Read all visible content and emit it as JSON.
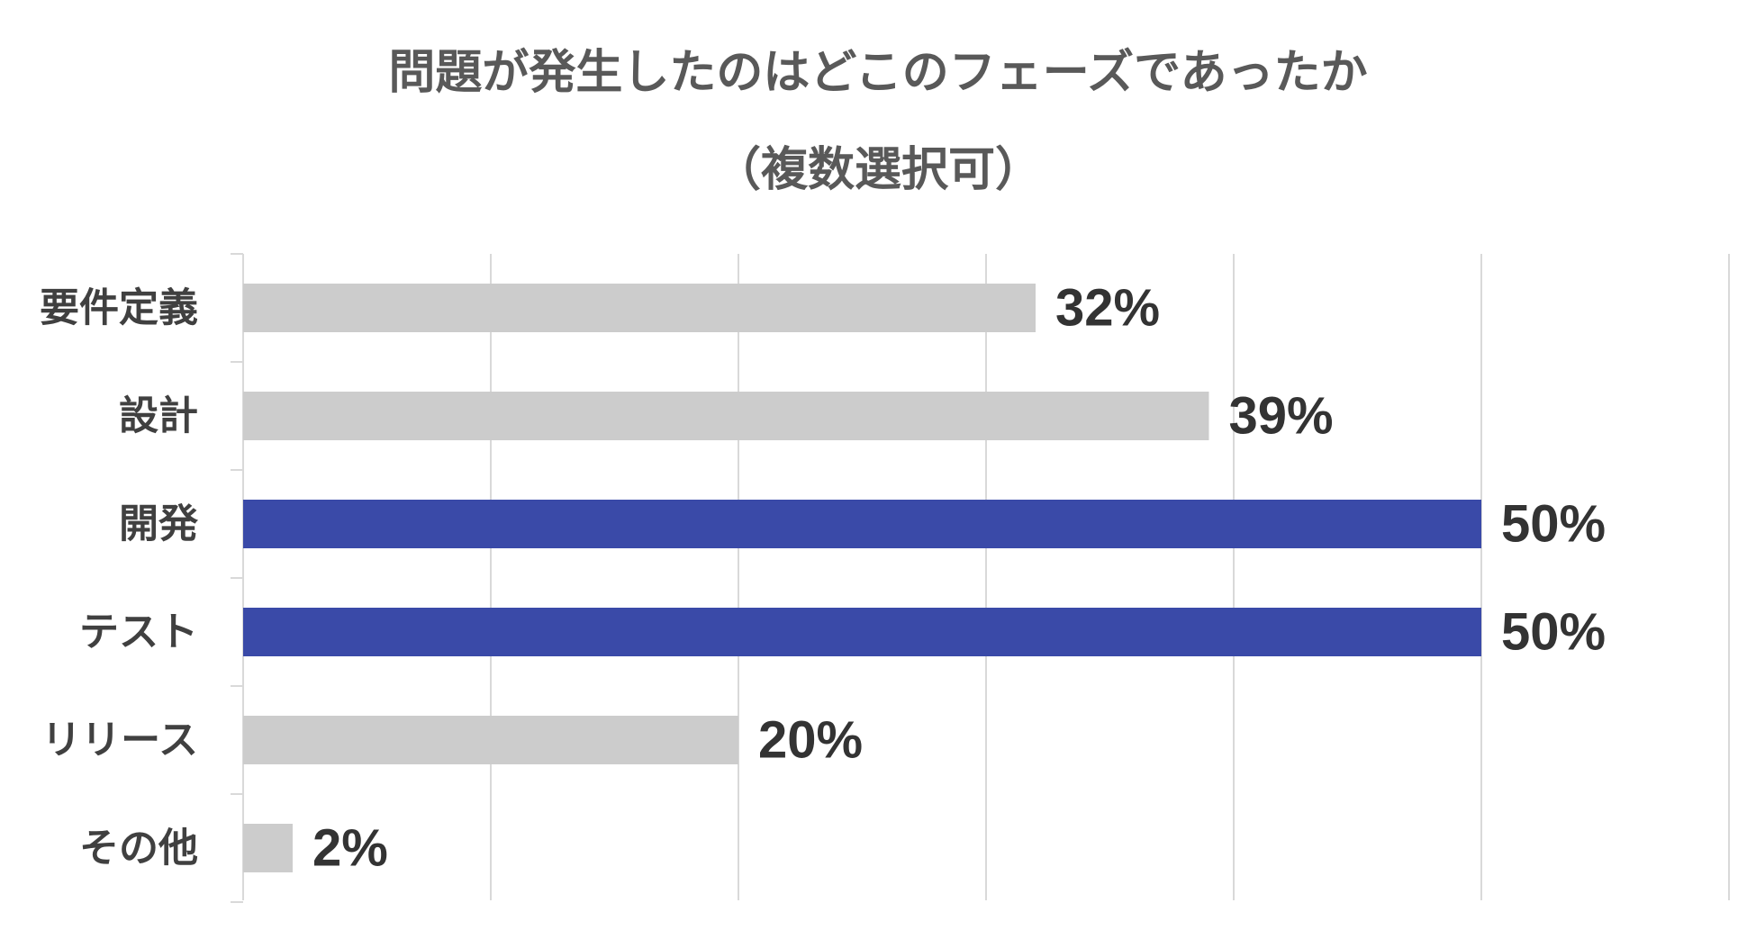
{
  "chart_data": {
    "type": "bar",
    "orientation": "horizontal",
    "title": "問題が発生したのはどこのフェーズであったか",
    "subtitle": "（複数選択可）",
    "categories": [
      "要件定義",
      "設計",
      "開発",
      "テスト",
      "リリース",
      "その他"
    ],
    "values": [
      32,
      39,
      50,
      50,
      20,
      2
    ],
    "value_labels": [
      "32%",
      "39%",
      "50%",
      "50%",
      "20%",
      "2%"
    ],
    "highlighted": [
      false,
      false,
      true,
      true,
      false,
      false
    ],
    "xlim": [
      0,
      60
    ],
    "grid": true,
    "legend": "none",
    "xlabel": "",
    "ylabel": ""
  },
  "colors": {
    "bar_default": "#cccccc",
    "bar_highlight": "#3a4aa8",
    "gridline": "#d9d9d9",
    "axis": "#d9d9d9"
  }
}
